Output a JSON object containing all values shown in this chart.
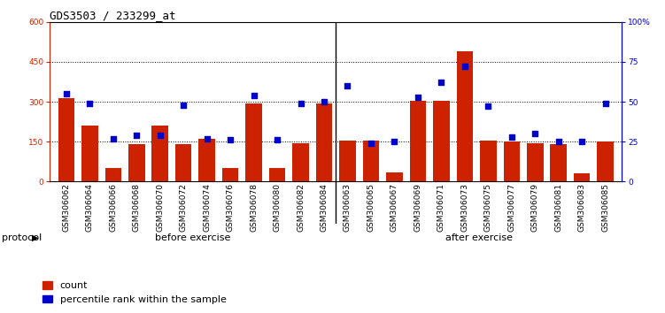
{
  "title": "GDS3503 / 233299_at",
  "samples": [
    "GSM306062",
    "GSM306064",
    "GSM306066",
    "GSM306068",
    "GSM306070",
    "GSM306072",
    "GSM306074",
    "GSM306076",
    "GSM306078",
    "GSM306080",
    "GSM306082",
    "GSM306084",
    "GSM306063",
    "GSM306065",
    "GSM306067",
    "GSM306069",
    "GSM306071",
    "GSM306073",
    "GSM306075",
    "GSM306077",
    "GSM306079",
    "GSM306081",
    "GSM306083",
    "GSM306085"
  ],
  "counts": [
    315,
    210,
    50,
    140,
    210,
    140,
    160,
    50,
    295,
    50,
    145,
    295,
    155,
    155,
    35,
    305,
    305,
    490,
    155,
    150,
    145,
    140,
    30,
    150
  ],
  "percentiles": [
    55,
    49,
    27,
    29,
    29,
    48,
    27,
    26,
    54,
    26,
    49,
    50,
    60,
    24,
    25,
    53,
    62,
    72,
    47,
    28,
    30,
    25,
    25,
    49
  ],
  "before_count": 12,
  "after_count": 12,
  "before_label": "before exercise",
  "after_label": "after exercise",
  "protocol_label": "protocol",
  "legend_count": "count",
  "legend_percentile": "percentile rank within the sample",
  "ylim_left": [
    0,
    600
  ],
  "ylim_right": [
    0,
    100
  ],
  "yticks_left": [
    0,
    150,
    300,
    450,
    600
  ],
  "ytick_labels_left": [
    "0",
    "150",
    "300",
    "450",
    "600"
  ],
  "yticks_right": [
    0,
    25,
    50,
    75,
    100
  ],
  "ytick_labels_right": [
    "0",
    "25",
    "50",
    "75",
    "100%"
  ],
  "bar_color": "#cc2200",
  "dot_color": "#0000cc",
  "before_bg": "#ccffcc",
  "after_bg": "#44dd44",
  "tick_bg": "#cccccc",
  "title_fontsize": 9,
  "tick_fontsize": 6.5,
  "label_fontsize": 8
}
